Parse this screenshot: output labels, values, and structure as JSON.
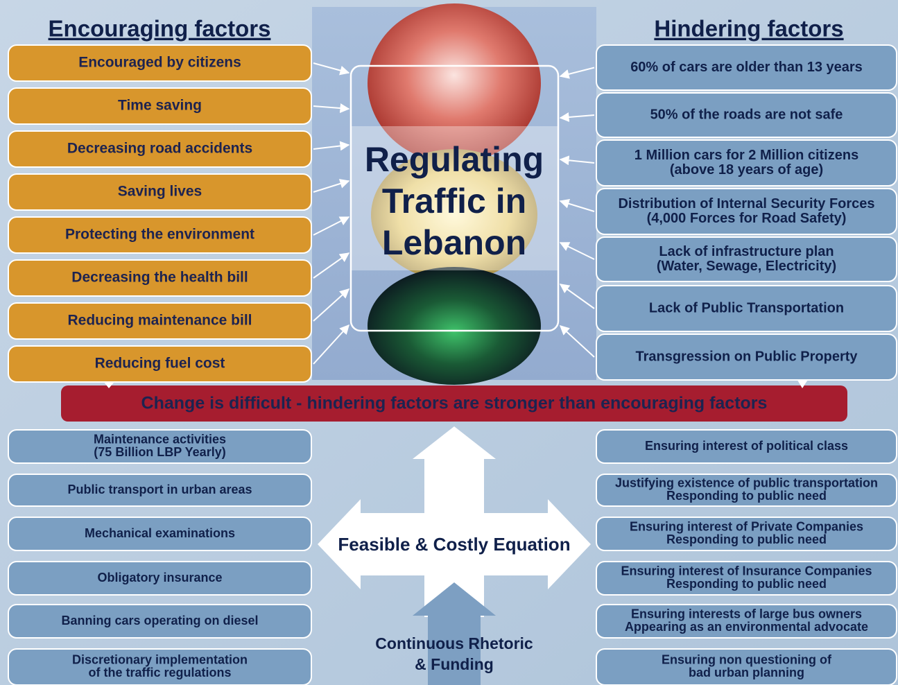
{
  "encouraging": {
    "title": "Encouraging factors",
    "items": [
      [
        "Encouraged by citizens"
      ],
      [
        "Time saving"
      ],
      [
        "Decreasing road accidents"
      ],
      [
        "Saving lives"
      ],
      [
        "Protecting the environment"
      ],
      [
        "Decreasing the health bill"
      ],
      [
        "Reducing maintenance bill"
      ],
      [
        "Reducing fuel cost"
      ]
    ]
  },
  "hindering": {
    "title": "Hindering factors",
    "items": [
      [
        "60% of cars are older than 13 years"
      ],
      [
        "50% of the roads are not safe"
      ],
      [
        "1 Million cars for 2 Million citizens",
        "(above 18 years of age)"
      ],
      [
        "Distribution of Internal Security Forces",
        "(4,000 Forces for Road Safety)"
      ],
      [
        "Lack of infrastructure plan",
        "(Water, Sewage, Electricity)"
      ],
      [
        "Lack of Public Transportation"
      ],
      [
        "Transgression on Public Property"
      ]
    ]
  },
  "center": {
    "title": [
      "Regulating",
      "Traffic in",
      "Lebanon"
    ]
  },
  "banner": "Change is difficult - hindering factors are stronger than encouraging factors",
  "measures": {
    "items": [
      [
        "Maintenance activities",
        "(75 Billion LBP Yearly)"
      ],
      [
        "Public transport in urban areas"
      ],
      [
        "Mechanical examinations"
      ],
      [
        "Obligatory insurance"
      ],
      [
        "Banning cars operating on diesel"
      ],
      [
        "Discretionary implementation",
        "of the traffic regulations"
      ]
    ]
  },
  "interests": {
    "items": [
      [
        "Ensuring interest of political class"
      ],
      [
        "Justifying existence of public transportation",
        "Responding to public need"
      ],
      [
        "Ensuring interest of Private Companies",
        "Responding to public need"
      ],
      [
        "Ensuring interest of Insurance Companies",
        "Responding to public need"
      ],
      [
        "Ensuring interests of large bus owners",
        "Appearing as an environmental advocate"
      ],
      [
        "Ensuring non questioning of",
        "bad urban planning"
      ]
    ]
  },
  "equation": {
    "label": "Feasible & Costly Equation",
    "driver": [
      "Continuous Rhetoric",
      "& Funding"
    ]
  }
}
